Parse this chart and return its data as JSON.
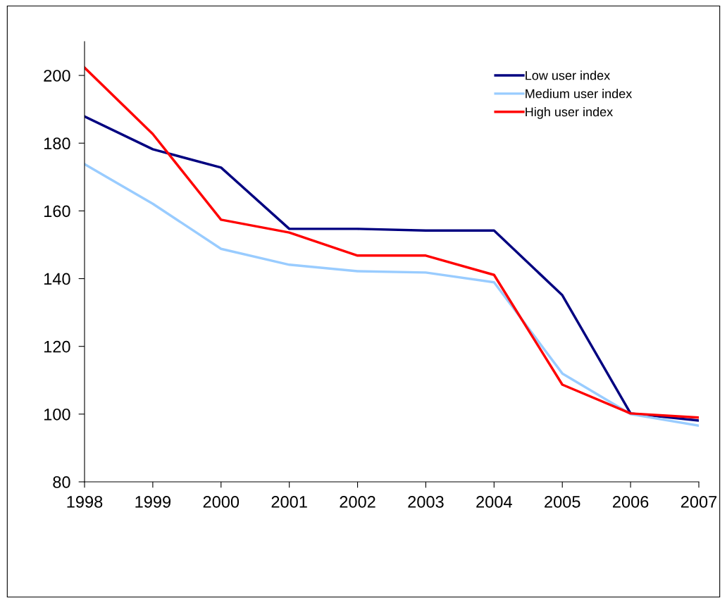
{
  "chart_data": {
    "type": "line",
    "categories": [
      "1998",
      "1999",
      "2000",
      "2001",
      "2002",
      "2003",
      "2004",
      "2005",
      "2006",
      "2007"
    ],
    "ylim": [
      80,
      210
    ],
    "yticks": [
      80,
      100,
      120,
      140,
      160,
      180,
      200
    ],
    "grid": false,
    "legend": "top right",
    "marker": "none",
    "line_style": "solid",
    "series": [
      {
        "name": "Low user index",
        "color": "#000080",
        "values": [
          187.9,
          178.2,
          172.8,
          154.7,
          154.7,
          154.2,
          154.2,
          135.1,
          100.2,
          98.1
        ]
      },
      {
        "name": "Medium user index",
        "color": "#99ccff",
        "values": [
          173.8,
          162.1,
          148.8,
          144.1,
          142.2,
          141.8,
          138.9,
          112.0,
          100.0,
          96.6
        ]
      },
      {
        "name": "High user index",
        "color": "#ff0000",
        "values": [
          202.3,
          182.7,
          157.4,
          153.6,
          146.8,
          146.8,
          141.1,
          108.7,
          100.2,
          99.0
        ]
      }
    ]
  }
}
